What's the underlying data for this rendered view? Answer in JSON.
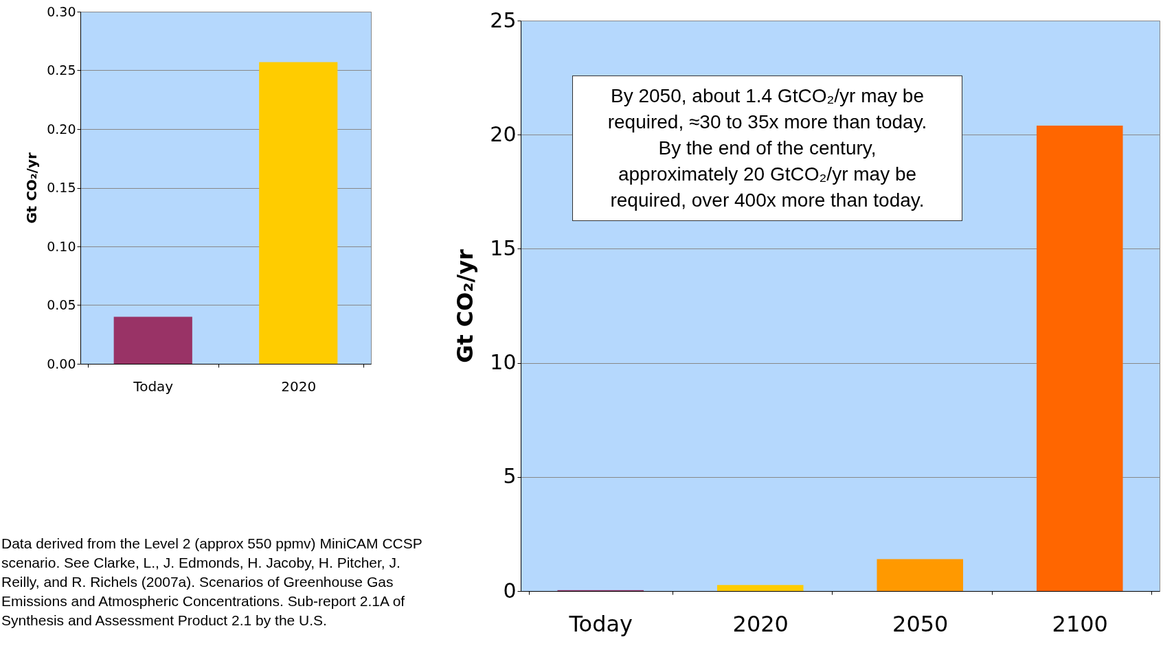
{
  "chart_data": [
    {
      "type": "bar",
      "categories": [
        "Today",
        "2020"
      ],
      "values": [
        0.04,
        0.257
      ],
      "colors": [
        "#993366",
        "#ffcc00"
      ],
      "ylabel": "Gt CO₂/yr",
      "ylim": [
        0,
        0.3
      ],
      "yticks": [
        {
          "value": 0,
          "label": "0.00"
        },
        {
          "value": 0.05,
          "label": "0.05"
        },
        {
          "value": 0.1,
          "label": "0.10"
        },
        {
          "value": 0.15,
          "label": "0.15"
        },
        {
          "value": 0.2,
          "label": "0.20"
        },
        {
          "value": 0.25,
          "label": "0.25"
        },
        {
          "value": 0.3,
          "label": "0.30"
        }
      ],
      "grid": true,
      "annotations": [
        "Data derived from the Level 2 (approx 550 ppmv) MiniCAM CCSP scenario. See Clarke, L., J. Edmonds, H. Jacoby, H. Pitcher, J. Reilly, and R. Richels (2007a). Scenarios of Greenhouse Gas Emissions and Atmospheric Concentrations. Sub-report 2.1A of Synthesis and Assessment Product 2.1 by the U.S."
      ]
    },
    {
      "type": "bar",
      "categories": [
        "Today",
        "2020",
        "2050",
        "2100"
      ],
      "values": [
        0.04,
        0.26,
        1.4,
        20.4
      ],
      "colors": [
        "#993366",
        "#ffcc00",
        "#ff9900",
        "#ff6600"
      ],
      "ylabel": "Gt CO₂/yr",
      "ylim": [
        0,
        25
      ],
      "yticks": [
        0,
        5,
        10,
        15,
        20,
        25
      ],
      "grid": true,
      "annotations": [
        "By 2050, about 1.4 GtCO₂/yr may be\nrequired, ≈30 to 35x more than today.\nBy the end of the century,\napproximately 20 GtCO₂/yr may be\nrequired, over 400x more than today."
      ]
    }
  ]
}
